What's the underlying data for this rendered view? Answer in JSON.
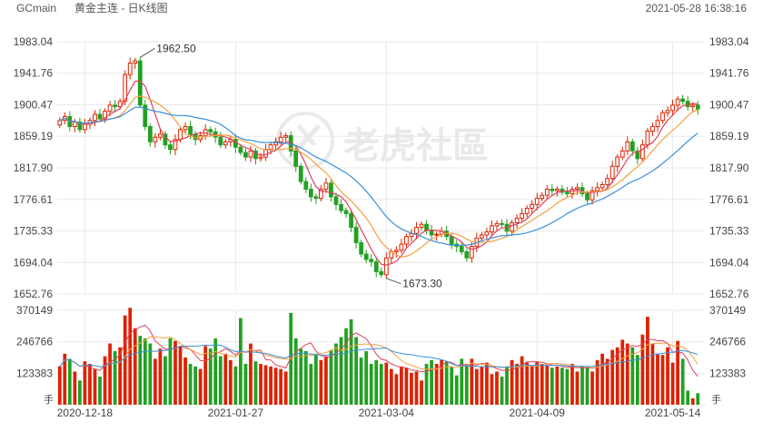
{
  "header": {
    "symbol": "GCmain",
    "title": "黄金主连 - 日K线图",
    "timestamp": "2021-05-28 16:38:16"
  },
  "watermark": {
    "text": "老虎社區",
    "icon": "tiger-paw-logo"
  },
  "colors": {
    "up": "#dd2200",
    "down": "#22a022",
    "ma5": "#e0405a",
    "ma10": "#f5a040",
    "ma20": "#3a8fdc",
    "grid": "#e8e8e8",
    "text": "#444444"
  },
  "chart_data": [
    {
      "type": "candlestick",
      "title": "黄金主连 - 日K线图",
      "x_tick_labels": [
        "2020-12-18",
        "2021-01-27",
        "2021-03-04",
        "2021-04-09",
        "2021-05-14"
      ],
      "y_tick_labels": [
        "1983.04",
        "1941.76",
        "1900.47",
        "1859.19",
        "1817.90",
        "1776.61",
        "1735.33",
        "1694.04",
        "1652.76"
      ],
      "ylim": [
        1652.76,
        1983.04
      ],
      "annotations": [
        {
          "label": "1962.50",
          "value": 1962.5,
          "kind": "high"
        },
        {
          "label": "1673.30",
          "value": 1673.3,
          "kind": "low"
        }
      ],
      "closes": [
        1880,
        1885,
        1872,
        1878,
        1868,
        1875,
        1880,
        1888,
        1882,
        1892,
        1900,
        1898,
        1905,
        1940,
        1955,
        1958,
        1900,
        1872,
        1852,
        1858,
        1862,
        1848,
        1842,
        1855,
        1868,
        1872,
        1862,
        1855,
        1860,
        1868,
        1865,
        1858,
        1848,
        1852,
        1855,
        1845,
        1838,
        1832,
        1840,
        1830,
        1832,
        1842,
        1848,
        1852,
        1858,
        1860,
        1840,
        1820,
        1800,
        1790,
        1780,
        1778,
        1790,
        1798,
        1780,
        1770,
        1762,
        1758,
        1740,
        1720,
        1705,
        1698,
        1695,
        1682,
        1678,
        1700,
        1708,
        1710,
        1718,
        1728,
        1732,
        1740,
        1744,
        1736,
        1730,
        1731,
        1735,
        1728,
        1718,
        1715,
        1708,
        1700,
        1715,
        1726,
        1730,
        1734,
        1742,
        1745,
        1744,
        1735,
        1746,
        1752,
        1758,
        1765,
        1770,
        1778,
        1782,
        1790,
        1788,
        1790,
        1786,
        1784,
        1790,
        1792,
        1784,
        1776,
        1788,
        1792,
        1796,
        1804,
        1820,
        1832,
        1840,
        1852,
        1840,
        1830,
        1848,
        1866,
        1872,
        1880,
        1890,
        1893,
        1900,
        1908,
        1905,
        1898,
        1900,
        1895
      ],
      "volume": {
        "y_tick_labels": [
          "370149",
          "246766",
          "123383"
        ],
        "ylim": [
          0,
          370149
        ],
        "unit_label": "手",
        "values": [
          150000,
          200000,
          180000,
          130000,
          95000,
          170000,
          160000,
          140000,
          110000,
          190000,
          240000,
          210000,
          225000,
          350000,
          380000,
          300000,
          270000,
          260000,
          240000,
          180000,
          220000,
          190000,
          260000,
          250000,
          230000,
          185000,
          160000,
          150000,
          140000,
          230000,
          220000,
          260000,
          190000,
          200000,
          175000,
          150000,
          340000,
          160000,
          240000,
          170000,
          160000,
          155000,
          150000,
          145000,
          140000,
          130000,
          360000,
          260000,
          220000,
          210000,
          160000,
          200000,
          175000,
          190000,
          215000,
          240000,
          265000,
          300000,
          335000,
          265000,
          185000,
          210000,
          160000,
          175000,
          160000,
          165000,
          140000,
          120000,
          150000,
          145000,
          125000,
          130000,
          95000,
          160000,
          175000,
          160000,
          175000,
          170000,
          150000,
          115000,
          180000,
          160000,
          180000,
          140000,
          150000,
          165000,
          120000,
          130000,
          110000,
          150000,
          175000,
          160000,
          190000,
          165000,
          150000,
          170000,
          160000,
          155000,
          145000,
          150000,
          145000,
          140000,
          160000,
          130000,
          150000,
          145000,
          130000,
          175000,
          200000,
          180000,
          215000,
          225000,
          255000,
          240000,
          225000,
          195000,
          275000,
          345000,
          240000,
          200000,
          195000,
          225000,
          165000,
          250000,
          180000,
          55000,
          25000,
          45000
        ]
      }
    }
  ]
}
